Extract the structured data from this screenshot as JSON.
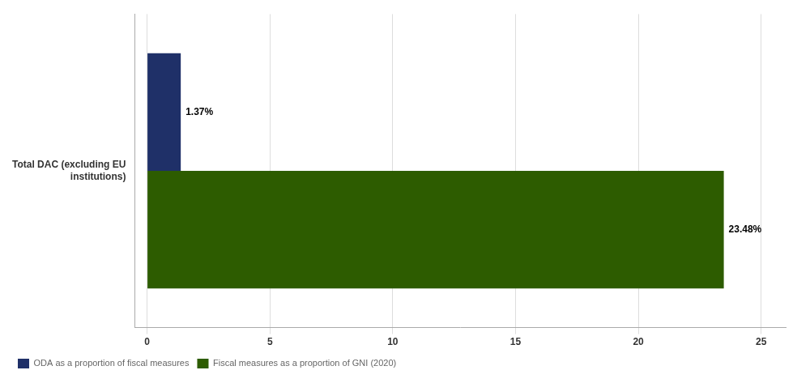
{
  "chart_data": {
    "type": "bar",
    "orientation": "horizontal",
    "categories": [
      "Total DAC (excluding EU\ninstitutions)"
    ],
    "series": [
      {
        "name": "ODA as a proportion of fiscal measures",
        "color": "#1F3068",
        "values": [
          1.37
        ],
        "value_labels": [
          "1.37%"
        ]
      },
      {
        "name": "Fiscal measures as a proportion of GNI (2020)",
        "color": "#2D5C00",
        "values": [
          23.48
        ],
        "value_labels": [
          "23.48%"
        ]
      }
    ],
    "xlim": [
      -0.5,
      26
    ],
    "xticks": [
      0,
      5,
      10,
      15,
      20,
      25
    ],
    "grid": true,
    "data_labels": true,
    "legend": "lower left"
  }
}
